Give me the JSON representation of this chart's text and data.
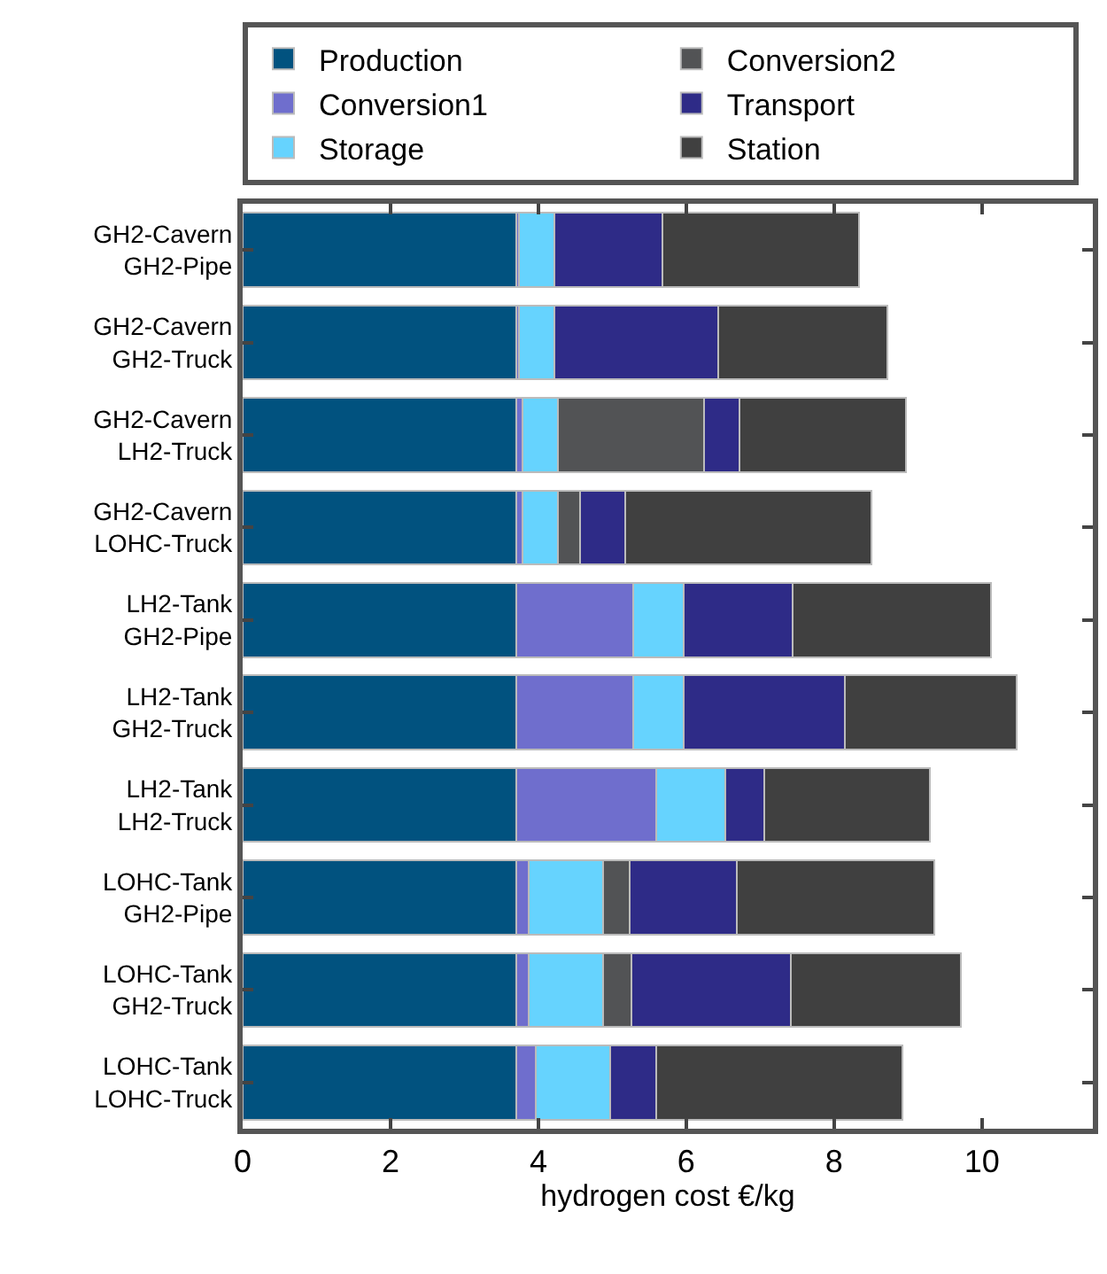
{
  "chart_data": {
    "type": "bar",
    "orientation": "horizontal",
    "stacked": true,
    "categories": [
      "GH2-Cavern\nGH2-Pipe",
      "GH2-Cavern\nGH2-Truck",
      "GH2-Cavern\nLH2-Truck",
      "GH2-Cavern\nLOHC-Truck",
      "LH2-Tank\nGH2-Pipe",
      "LH2-Tank\nGH2-Truck",
      "LH2-Tank\nLH2-Truck",
      "LOHC-Tank\nGH2-Pipe",
      "LOHC-Tank\nGH2-Truck",
      "LOHC-Tank\nLOHC-Truck"
    ],
    "series": [
      {
        "name": "Production",
        "color": "#01527f",
        "values": [
          3.7,
          3.7,
          3.7,
          3.7,
          3.7,
          3.7,
          3.7,
          3.7,
          3.7,
          3.7
        ]
      },
      {
        "name": "Conversion1",
        "color": "#6f6ecd",
        "values": [
          0.04,
          0.04,
          0.09,
          0.09,
          1.58,
          1.58,
          1.89,
          0.17,
          0.17,
          0.27
        ]
      },
      {
        "name": "Storage",
        "color": "#66d3fe",
        "values": [
          0.48,
          0.48,
          0.47,
          0.47,
          0.69,
          0.69,
          0.94,
          1.0,
          1.0,
          1.0
        ]
      },
      {
        "name": "Conversion2",
        "color": "#525355",
        "values": [
          0,
          0,
          1.98,
          0.3,
          0,
          0,
          0,
          0.37,
          0.39,
          0
        ]
      },
      {
        "name": "Transport",
        "color": "#2e2b87",
        "values": [
          1.46,
          2.21,
          0.48,
          0.61,
          1.47,
          2.18,
          0.52,
          1.44,
          2.16,
          0.62
        ]
      },
      {
        "name": "Station",
        "color": "#404040",
        "values": [
          2.66,
          2.29,
          2.25,
          3.34,
          2.68,
          2.32,
          2.25,
          2.67,
          2.3,
          3.34
        ]
      }
    ],
    "xlabel": "hydrogen cost €/kg",
    "xlim": [
      0,
      11.5
    ],
    "xticks": [
      0,
      2,
      4,
      6,
      8,
      10
    ],
    "legend": "top"
  }
}
